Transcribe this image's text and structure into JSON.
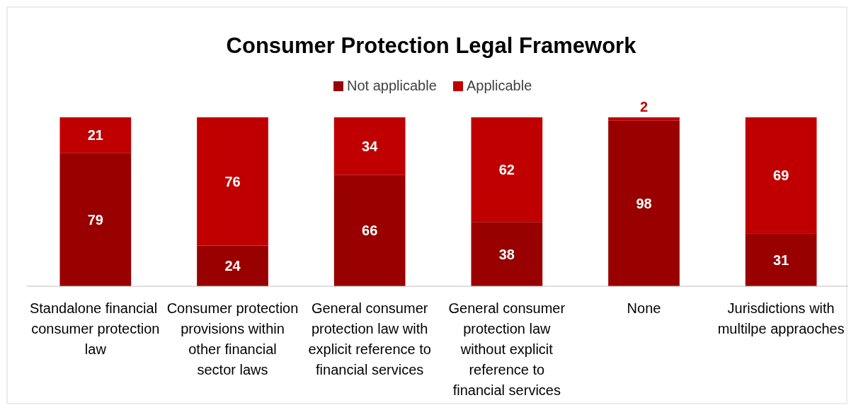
{
  "chart_data": {
    "type": "bar",
    "title": "Consumer Protection Legal Framework",
    "stacked": true,
    "data_labels": true,
    "legend": "top",
    "categories": [
      "Standalone financial  consumer protection law",
      "Consumer protection provisions within other financial sector laws",
      "General consumer protection law with explicit reference to financial services",
      "General consumer protection law without explicit reference to financial services",
      "None",
      "Jurisdictions with multilpe appraoches"
    ],
    "series": [
      {
        "name": "Not applicable",
        "color": "#990000",
        "values": [
          79,
          24,
          66,
          38,
          98,
          31
        ]
      },
      {
        "name": "Applicable",
        "color": "#c00000",
        "values": [
          21,
          76,
          34,
          62,
          2,
          69
        ]
      }
    ]
  }
}
